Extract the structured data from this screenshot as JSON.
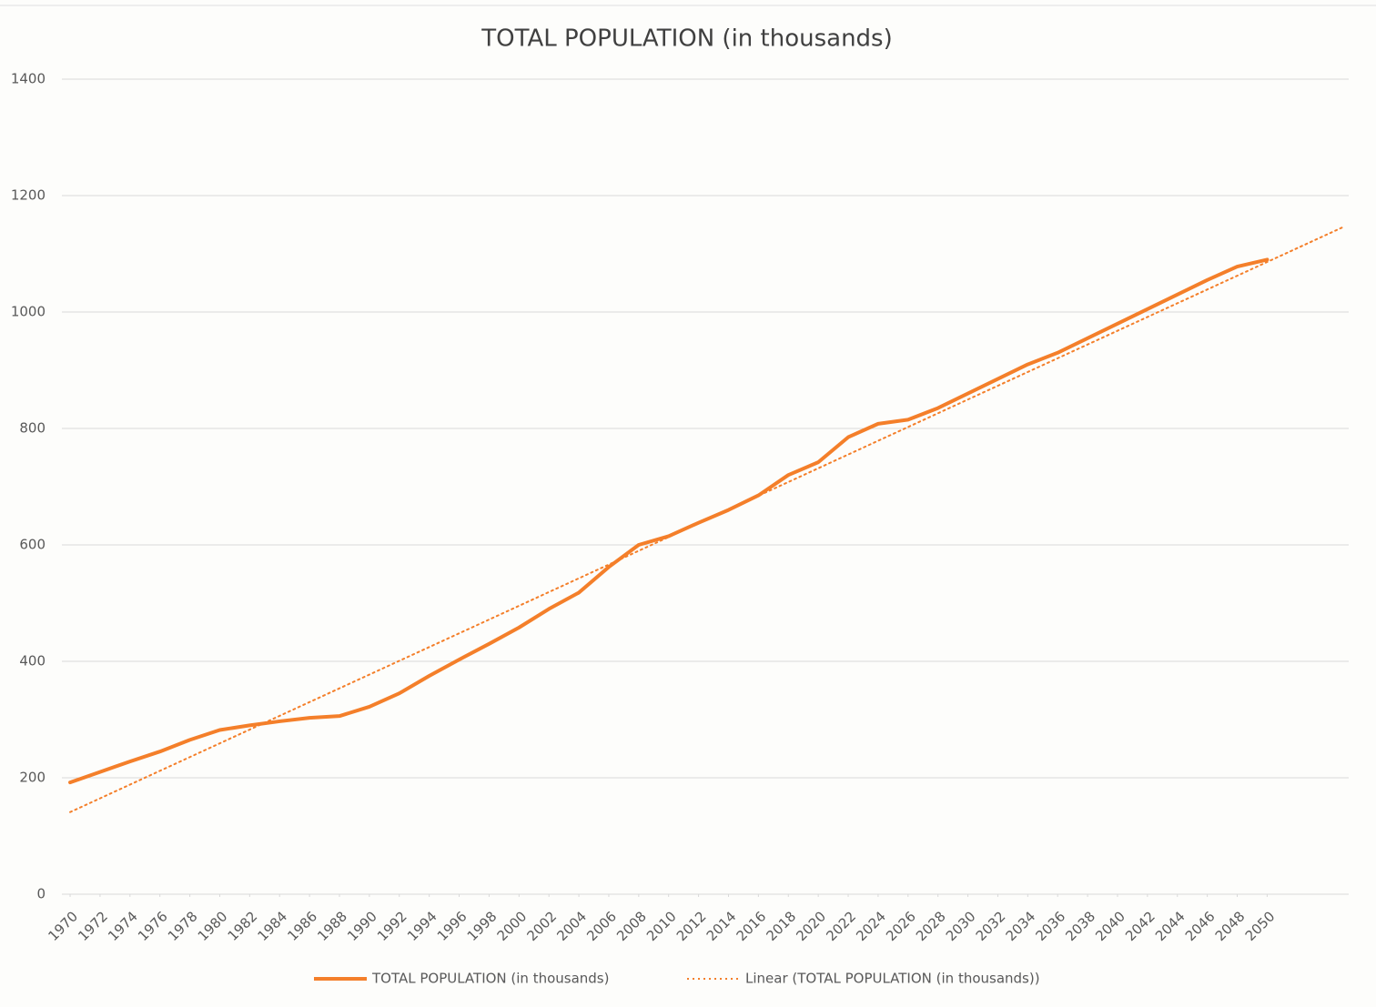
{
  "chart_data": {
    "type": "line",
    "title": "TOTAL POPULATION (in thousands)",
    "xlim": [
      1969.45,
      2055.45
    ],
    "xticks": [
      1970,
      1972,
      1974,
      1976,
      1978,
      1980,
      1982,
      1984,
      1986,
      1988,
      1990,
      1992,
      1994,
      1996,
      1998,
      2000,
      2002,
      2004,
      2006,
      2008,
      2010,
      2012,
      2014,
      2016,
      2018,
      2020,
      2022,
      2024,
      2026,
      2028,
      2030,
      2032,
      2034,
      2036,
      2038,
      2040,
      2042,
      2044,
      2046,
      2048,
      2050
    ],
    "ylim": [
      0,
      1400
    ],
    "yticks": [
      0,
      200,
      400,
      600,
      800,
      1000,
      1200,
      1400
    ],
    "grid": true,
    "legend": "bottom",
    "series": [
      {
        "name": "TOTAL POPULATION (in thousands)",
        "color": "#f47f2a",
        "style": "solid",
        "x": [
          1970,
          1972,
          1974,
          1976,
          1978,
          1980,
          1982,
          1984,
          1986,
          1988,
          1990,
          1992,
          1994,
          1996,
          1998,
          2000,
          2002,
          2004,
          2006,
          2008,
          2010,
          2012,
          2014,
          2016,
          2018,
          2020,
          2022,
          2024,
          2026,
          2028,
          2030,
          2032,
          2034,
          2036,
          2038,
          2040,
          2042,
          2044,
          2046,
          2048,
          2050
        ],
        "values": [
          192,
          210,
          228,
          245,
          265,
          282,
          290,
          297,
          303,
          306,
          322,
          345,
          375,
          403,
          430,
          458,
          490,
          518,
          562,
          600,
          615,
          638,
          660,
          685,
          720,
          742,
          785,
          808,
          815,
          835,
          860,
          885,
          910,
          930,
          955,
          980,
          1005,
          1030,
          1055,
          1078,
          1090
        ]
      },
      {
        "name": "Linear (TOTAL POPULATION (in thousands))",
        "color": "#f47f2a",
        "style": "dotted",
        "x": [
          1970,
          2055
        ],
        "values": [
          141,
          1145
        ]
      }
    ]
  }
}
